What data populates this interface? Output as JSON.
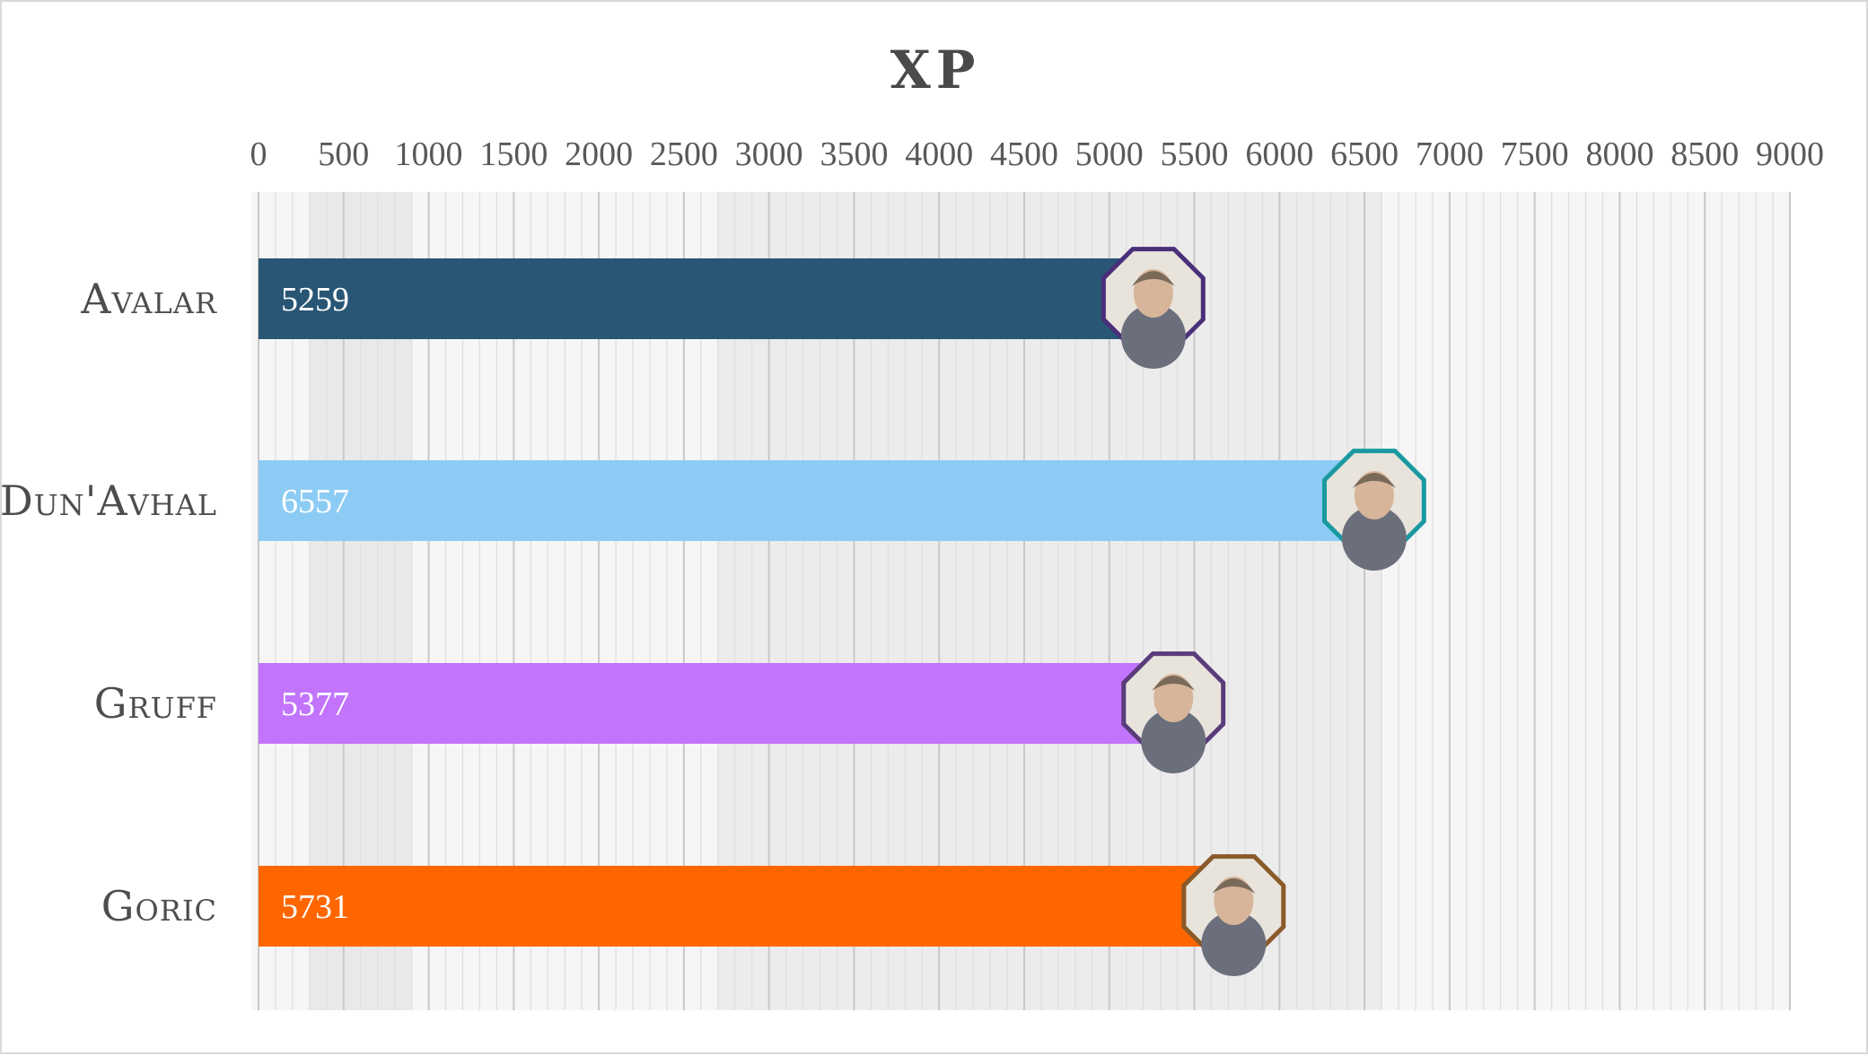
{
  "chart_data": {
    "type": "bar",
    "orientation": "horizontal",
    "title": "XP",
    "xlabel": "",
    "ylabel": "",
    "xlim": [
      0,
      9000
    ],
    "x_ticks": [
      0,
      500,
      1000,
      1500,
      2000,
      2500,
      3000,
      3500,
      4000,
      4500,
      5000,
      5500,
      6000,
      6500,
      7000,
      7500,
      8000,
      8500,
      9000
    ],
    "x_axis_position": "top",
    "grid": true,
    "legend": "none",
    "categories": [
      "Avalar",
      "Dun'Avhal",
      "Gruff",
      "Goric"
    ],
    "values": [
      5259,
      6557,
      5377,
      5731
    ],
    "colors": [
      "#285674",
      "#8cccf4",
      "#c275fc",
      "#ff6600"
    ],
    "marker_border_colors": [
      "#4a2f7a",
      "#1a9aa0",
      "#5a3c7a",
      "#8a5a2a"
    ],
    "markers": [
      "elf-portrait-icon",
      "human-portrait-icon",
      "dwarf-portrait-icon",
      "gnome-portrait-icon"
    ],
    "data_labels": true
  }
}
